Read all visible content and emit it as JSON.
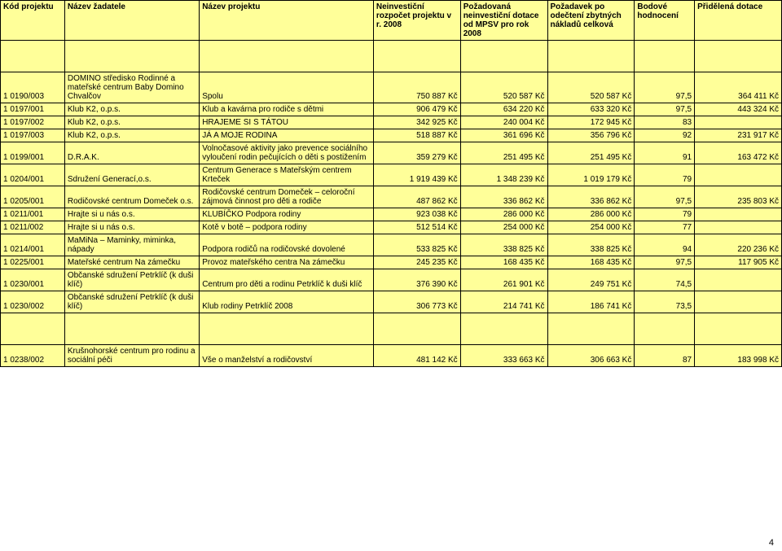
{
  "page_number": "4",
  "header": {
    "c0": "Kód projektu",
    "c1": "Název žadatele",
    "c2": "Název projektu",
    "c3": "Neinvestiční rozpočet projektu v r. 2008",
    "c4": "Požadovaná neinvestiční dotace od MPSV pro rok 2008",
    "c5": "Požadavek po odečtení zbytných nákladů celková",
    "c6": "Bodové hodnocení",
    "c7": "Přidělená dotace"
  },
  "rows": [
    {
      "c0": "1 0190/003",
      "c1": "DOMINO středisko Rodinné a mateřské centrum Baby Domino Chvalčov",
      "c2": "Spolu",
      "c3": "750 887 Kč",
      "c4": "520 587 Kč",
      "c5": "520 587 Kč",
      "c6": "97,5",
      "c7": "364 411 Kč"
    },
    {
      "c0": "1 0197/001",
      "c1": "Klub K2, o.p.s.",
      "c2": "Klub a kavárna pro rodiče s dětmi",
      "c3": "906 479 Kč",
      "c4": "634 220 Kč",
      "c5": "633 320 Kč",
      "c6": "97,5",
      "c7": "443 324 Kč"
    },
    {
      "c0": "1 0197/002",
      "c1": "Klub K2, o.p.s.",
      "c2": "HRAJEME SI S TÁTOU",
      "c3": "342 925 Kč",
      "c4": "240 004 Kč",
      "c5": "172 945 Kč",
      "c6": "83",
      "c7": ""
    },
    {
      "c0": "1 0197/003",
      "c1": "Klub K2, o.p.s.",
      "c2": "JÁ A MOJE RODINA",
      "c3": "518 887 Kč",
      "c4": "361 696 Kč",
      "c5": "356 796 Kč",
      "c6": "92",
      "c7": "231 917 Kč"
    },
    {
      "c0": "1 0199/001",
      "c1": "D.R.A.K.",
      "c2": "Volnočasové aktivity jako prevence sociálního vyloučení rodin pečujících o děti s postižením",
      "c3": "359 279 Kč",
      "c4": "251 495 Kč",
      "c5": "251 495 Kč",
      "c6": "91",
      "c7": "163 472 Kč"
    },
    {
      "c0": "1 0204/001",
      "c1": "Sdružení Generací,o.s.",
      "c2": "Centrum Generace s Mateřským centrem Krteček",
      "c3": "1 919 439 Kč",
      "c4": "1 348 239 Kč",
      "c5": "1 019 179 Kč",
      "c6": "79",
      "c7": ""
    },
    {
      "c0": "1 0205/001",
      "c1": "Rodičovské centrum Domeček o.s.",
      "c2": "Rodičovské centrum Domeček – celoroční zájmová činnost pro děti a rodiče",
      "c3": "487 862 Kč",
      "c4": "336 862 Kč",
      "c5": "336 862 Kč",
      "c6": "97,5",
      "c7": "235 803 Kč"
    },
    {
      "c0": "1 0211/001",
      "c1": "Hrajte si u nás o.s.",
      "c2": "KLUBÍČKO Podpora rodiny",
      "c3": "923 038 Kč",
      "c4": "286 000 Kč",
      "c5": "286 000 Kč",
      "c6": "79",
      "c7": ""
    },
    {
      "c0": "1 0211/002",
      "c1": "Hrajte si u nás o.s.",
      "c2": "Kotě v botě – podpora rodiny",
      "c3": "512 514 Kč",
      "c4": "254 000 Kč",
      "c5": "254 000 Kč",
      "c6": "77",
      "c7": ""
    },
    {
      "c0": "1 0214/001",
      "c1": "MaMiNa – Maminky, miminka, nápady",
      "c2": "Podpora rodičů na rodičovské dovolené",
      "c3": "533 825 Kč",
      "c4": "338 825 Kč",
      "c5": "338 825 Kč",
      "c6": "94",
      "c7": "220 236 Kč"
    },
    {
      "c0": "1 0225/001",
      "c1": "Mateřské centrum Na zámečku",
      "c2": "Provoz mateřského centra Na zámečku",
      "c3": "245 235 Kč",
      "c4": "168 435 Kč",
      "c5": "168 435 Kč",
      "c6": "97,5",
      "c7": "117 905 Kč"
    },
    {
      "c0": "1 0230/001",
      "c1": "Občanské sdružení Petrklíč (k duši klíč)",
      "c2": "Centrum pro děti a rodinu Petrklíč k duši klíč",
      "c3": "376 390 Kč",
      "c4": "261 901 Kč",
      "c5": "249 751 Kč",
      "c6": "74,5",
      "c7": ""
    },
    {
      "c0": "1 0230/002",
      "c1": "Občanské sdružení Petrklíč (k duši klíč)",
      "c2": "Klub rodiny Petrklíč 2008",
      "c3": "306 773 Kč",
      "c4": "214 741 Kč",
      "c5": "186 741 Kč",
      "c6": "73,5",
      "c7": ""
    },
    {
      "c0": "1 0238/002",
      "c1": "Krušnohorské centrum pro rodinu a sociální péči",
      "c2": "Vše o manželství a rodičovství",
      "c3": "481 142 Kč",
      "c4": "333 663 Kč",
      "c5": "306 663 Kč",
      "c6": "87",
      "c7": "183 998 Kč"
    }
  ]
}
